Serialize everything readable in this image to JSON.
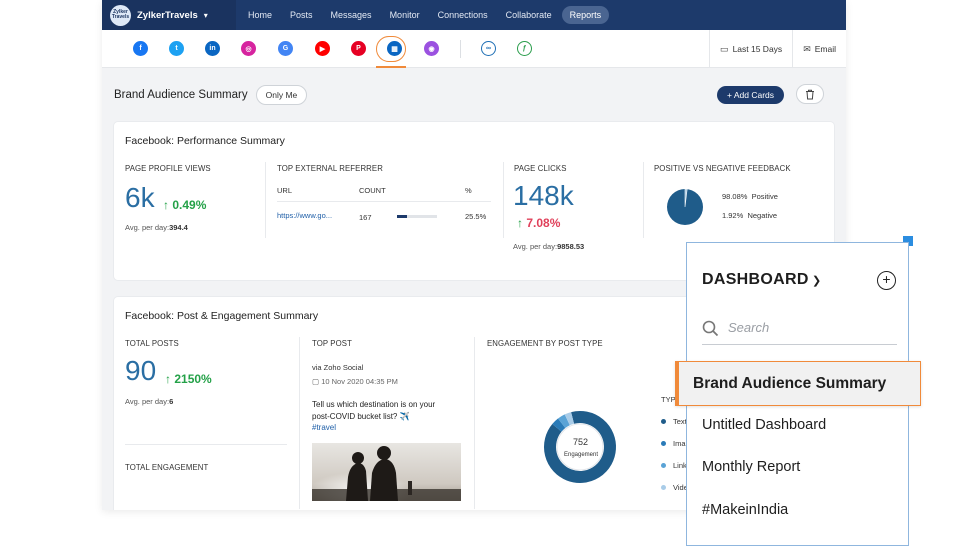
{
  "topbar": {
    "logo_text": "Zylker Travels",
    "brand": "ZylkerTravels",
    "nav": [
      "Home",
      "Posts",
      "Messages",
      "Monitor",
      "Connections",
      "Collaborate",
      "Reports"
    ],
    "active_nav": "Reports"
  },
  "networks": [
    {
      "name": "facebook-icon",
      "color": "#1877f2",
      "glyph": "f"
    },
    {
      "name": "twitter-icon",
      "color": "#1da1f2",
      "glyph": "t"
    },
    {
      "name": "linkedin-page-icon",
      "color": "#0a66c2",
      "glyph": "in"
    },
    {
      "name": "instagram-icon",
      "color": "#d6249f",
      "glyph": "◎"
    },
    {
      "name": "google-business-icon",
      "color": "#4285f4",
      "glyph": "G"
    },
    {
      "name": "youtube-icon",
      "color": "#ff0000",
      "glyph": "▶"
    },
    {
      "name": "pinterest-icon",
      "color": "#e60023",
      "glyph": "P"
    },
    {
      "name": "dashboard-grid-icon",
      "color": "#0a66c2",
      "glyph": "▦"
    },
    {
      "name": "zoho-social-icon",
      "color": "#9b51e0",
      "glyph": "◉"
    },
    {
      "name": "compare-icon",
      "color": "#1f6fb5",
      "glyph": "∞"
    },
    {
      "name": "custom-report-icon",
      "color": "#2a9d4b",
      "glyph": "ƒ"
    }
  ],
  "toolbar": {
    "date_range": "Last 15 Days",
    "email": "Email"
  },
  "header": {
    "title": "Brand Audience Summary",
    "filter_chip": "Only Me",
    "add_cards": "+ Add Cards"
  },
  "performance_card": {
    "title": "Facebook: Performance Summary",
    "profile_views": {
      "label": "PAGE PROFILE VIEWS",
      "value": "6k",
      "delta": "0.49%",
      "avg_label": "Avg. per day:",
      "avg_value": "394.4"
    },
    "referrer": {
      "label": "TOP EXTERNAL REFERRER",
      "columns": [
        "URL",
        "COUNT",
        "%"
      ],
      "rows": [
        {
          "url": "https://www.go...",
          "count": "167",
          "percent": "25.5%",
          "fill": 0.255
        }
      ]
    },
    "page_clicks": {
      "label": "PAGE CLICKS",
      "value": "148k",
      "delta": "7.08%",
      "avg_label": "Avg. per day:",
      "avg_value": "9858.53"
    },
    "feedback": {
      "label": "POSITIVE VS NEGATIVE FEEDBACK",
      "positive_pct": "98.08%",
      "positive_label": "Positive",
      "negative_pct": "1.92%",
      "negative_label": "Negative",
      "positive": 98.08,
      "negative": 1.92,
      "colors": {
        "positive": "#1f5c8a",
        "negative": "#9fc3de"
      }
    }
  },
  "post_card": {
    "title": "Facebook: Post & Engagement Summary",
    "total_posts": {
      "label": "TOTAL POSTS",
      "value": "90",
      "delta": "2150%",
      "avg_label": "Avg. per day:",
      "avg_value": "6"
    },
    "total_engagement_label": "TOTAL ENGAGEMENT",
    "top_post": {
      "label": "TOP POST",
      "source": "via Zoho Social",
      "date": "10 Nov 2020 04:35 PM",
      "text": "Tell us which destination is on your post-COVID bucket list? ✈️",
      "hashtag": "#travel"
    },
    "engagement_by_type": {
      "label": "ENGAGEMENT BY POST TYPE",
      "total": "752",
      "total_label": "Engagement",
      "legend_header": "TYP",
      "legend": [
        "Text",
        "Ima",
        "Link",
        "Vide"
      ],
      "colors": [
        "#1f5c8a",
        "#2a7bb8",
        "#5aa3d6",
        "#a9cce8"
      ]
    }
  },
  "dashboard_menu": {
    "title": "DASHBOARD",
    "search_placeholder": "Search",
    "items": [
      "Brand Audience Summary",
      "Untitled Dashboard",
      "Monthly Report",
      "#MakeinIndia"
    ],
    "selected_index": 0
  }
}
